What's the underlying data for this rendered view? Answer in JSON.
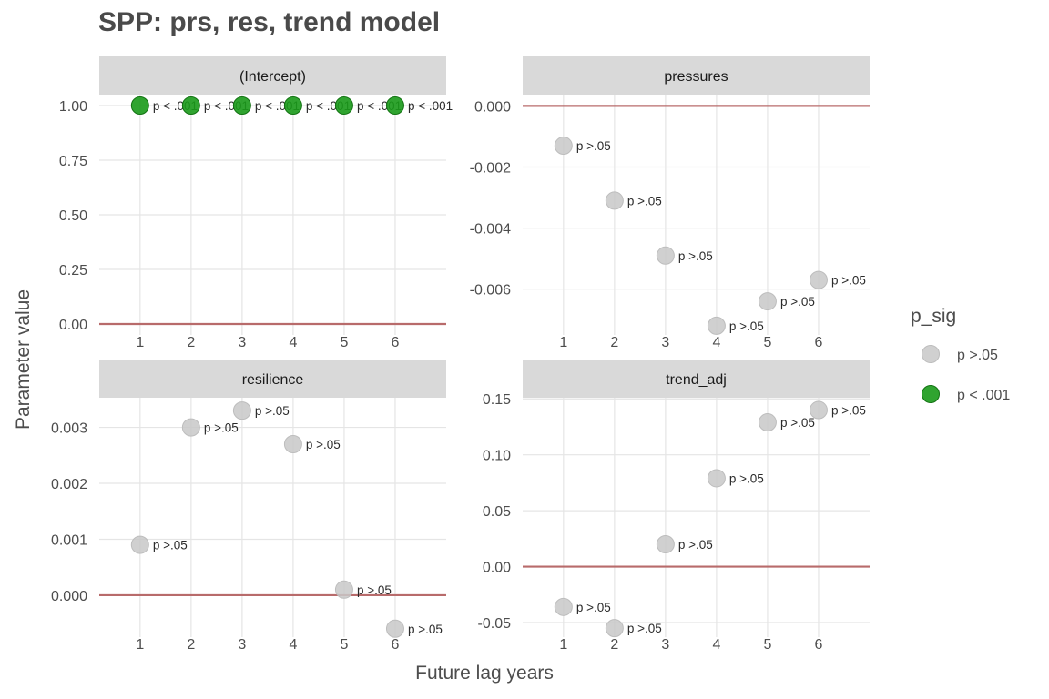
{
  "title": "SPP: prs, res, trend model",
  "xlabel": "Future lag years",
  "ylabel": "Parameter value",
  "legend": {
    "title": "p_sig",
    "position": "right",
    "entries": [
      {
        "label": "p >.05",
        "color": "#c8c8c8"
      },
      {
        "label": "p < .001",
        "color": "#1a9a1a"
      }
    ]
  },
  "colors": {
    "ref_line": "#b86b6b",
    "strip": "#d9d9d9",
    "grid": "#e5e5e5",
    "text": "#4d4d4d"
  },
  "chart_data": [
    {
      "type": "scatter",
      "panel": "(Intercept)",
      "x": [
        1,
        2,
        3,
        4,
        5,
        6
      ],
      "y": [
        1.0,
        1.0,
        1.0,
        1.0,
        1.0,
        1.0
      ],
      "labels": [
        "p < .001",
        "p < .001",
        "p < .001",
        "p < .001",
        "p < .001",
        "p < .001"
      ],
      "sig": [
        "p < .001",
        "p < .001",
        "p < .001",
        "p < .001",
        "p < .001",
        "p < .001"
      ],
      "xlim": [
        0.2,
        7.0
      ],
      "ylim": [
        -0.05,
        1.05
      ],
      "xticks": [
        1,
        2,
        3,
        4,
        5,
        6
      ],
      "xtick_labels": [
        "1",
        "2",
        "3",
        "4",
        "5",
        "6"
      ],
      "yticks": [
        0,
        0.25,
        0.5,
        0.75,
        1.0
      ],
      "ytick_labels": [
        "0.00",
        "0.25",
        "0.50",
        "0.75",
        "1.00"
      ],
      "ref_line": 0
    },
    {
      "type": "scatter",
      "panel": "pressures",
      "x": [
        1,
        2,
        3,
        4,
        5,
        6
      ],
      "y": [
        -0.0013,
        -0.0031,
        -0.0049,
        -0.0072,
        -0.0064,
        -0.0057
      ],
      "labels": [
        "p >.05",
        "p >.05",
        "p >.05",
        "p >.05",
        "p >.05",
        "p >.05"
      ],
      "sig": [
        "p >.05",
        "p >.05",
        "p >.05",
        "p >.05",
        "p >.05",
        "p >.05"
      ],
      "xlim": [
        0.2,
        7.0
      ],
      "ylim": [
        -0.0075,
        0.00037
      ],
      "xticks": [
        1,
        2,
        3,
        4,
        5,
        6
      ],
      "xtick_labels": [
        "1",
        "2",
        "3",
        "4",
        "5",
        "6"
      ],
      "yticks": [
        0,
        -0.002,
        -0.004,
        -0.006
      ],
      "ytick_labels": [
        "0.000",
        "-0.002",
        "-0.004",
        "-0.006"
      ],
      "ref_line": 0
    },
    {
      "type": "scatter",
      "panel": "resilience",
      "x": [
        1,
        2,
        3,
        4,
        5,
        6
      ],
      "y": [
        0.0009,
        0.003,
        0.0033,
        0.0027,
        0.0001,
        -0.0006
      ],
      "labels": [
        "p >.05",
        "p >.05",
        "p >.05",
        "p >.05",
        "p >.05",
        "p >.05"
      ],
      "sig": [
        "p >.05",
        "p >.05",
        "p >.05",
        "p >.05",
        "p >.05",
        "p >.05"
      ],
      "xlim": [
        0.2,
        7.0
      ],
      "ylim": [
        -0.00075,
        0.00353
      ],
      "xticks": [
        1,
        2,
        3,
        4,
        5,
        6
      ],
      "xtick_labels": [
        "1",
        "2",
        "3",
        "4",
        "5",
        "6"
      ],
      "yticks": [
        0,
        0.001,
        0.002,
        0.003
      ],
      "ytick_labels": [
        "0.000",
        "0.001",
        "0.002",
        "0.003"
      ],
      "ref_line": 0
    },
    {
      "type": "scatter",
      "panel": "trend_adj",
      "x": [
        1,
        2,
        3,
        4,
        5,
        6
      ],
      "y": [
        -0.036,
        -0.055,
        0.02,
        0.079,
        0.129,
        0.14
      ],
      "labels": [
        "p >.05",
        "p >.05",
        "p >.05",
        "p >.05",
        "p >.05",
        "p >.05"
      ],
      "sig": [
        "p >.05",
        "p >.05",
        "p >.05",
        "p >.05",
        "p >.05",
        "p >.05"
      ],
      "xlim": [
        0.2,
        7.0
      ],
      "ylim": [
        -0.063,
        0.151
      ],
      "xticks": [
        1,
        2,
        3,
        4,
        5,
        6
      ],
      "xtick_labels": [
        "1",
        "2",
        "3",
        "4",
        "5",
        "6"
      ],
      "yticks": [
        -0.05,
        0,
        0.05,
        0.1,
        0.15
      ],
      "ytick_labels": [
        "-0.05",
        "0.00",
        "0.05",
        "0.10",
        "0.15"
      ],
      "ref_line": 0
    }
  ]
}
